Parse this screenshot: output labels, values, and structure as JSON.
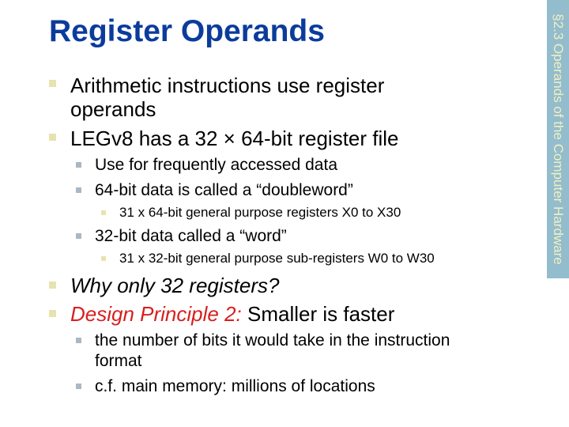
{
  "title": "Register Operands",
  "sidebar_label": "§2.3 Operands of the Computer Hardware",
  "bullets": {
    "b1_line1": "Arithmetic instructions use register",
    "b1_line2": "operands",
    "b2": "LEGv8 has a 32 × 64-bit register file",
    "b2_1": "Use for frequently accessed data",
    "b2_2": "64-bit data is called a “doubleword”",
    "b2_2_1": "31 x 64-bit general purpose registers X0 to X30",
    "b2_3": "32-bit data called a “word”",
    "b2_3_1": "31 x 32-bit general purpose sub-registers W0 to W30",
    "b3": "Why only 32 registers?",
    "b4_emph": "Design Principle 2:",
    "b4_rest": " Smaller is faster",
    "b4_1_line1": "the number of bits it would take in the instruction",
    "b4_1_line2": "format",
    "b4_2": "c.f. main memory: millions of locations"
  },
  "colors": {
    "title": "#0b3c9c",
    "emphasis": "#d81e1e",
    "sidebar": "#93bdcd"
  }
}
